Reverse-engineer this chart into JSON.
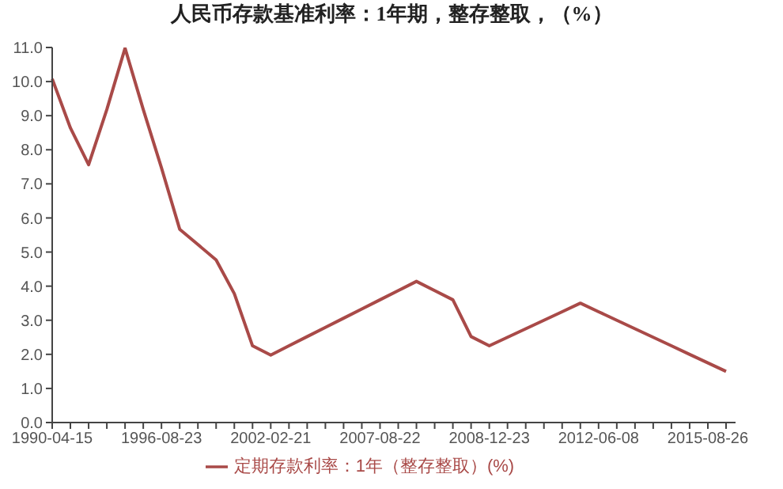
{
  "chart_data": {
    "type": "line",
    "title": "人民币存款基准利率：1年期，整存整取，（%）",
    "categories": [
      "1990-04-15",
      null,
      null,
      null,
      null,
      null,
      "1996-08-23",
      null,
      null,
      null,
      null,
      null,
      "2002-02-21",
      null,
      null,
      null,
      null,
      null,
      "2007-08-22",
      null,
      null,
      null,
      null,
      null,
      "2008-12-23",
      null,
      null,
      null,
      null,
      null,
      "2012-06-08",
      null,
      null,
      null,
      null,
      null,
      "2015-08-26",
      null
    ],
    "series": [
      {
        "name": "定期存款利率：1年（整存整取）(%)",
        "color": "#a94a48",
        "values": [
          10.08,
          8.64,
          7.56,
          9.18,
          10.98,
          9.18,
          7.47,
          5.67,
          5.22,
          4.77,
          3.78,
          2.25,
          1.98,
          2.25,
          2.52,
          2.79,
          3.06,
          3.33,
          3.6,
          3.87,
          4.14,
          3.87,
          3.6,
          2.52,
          2.25,
          2.5,
          2.75,
          3.0,
          3.25,
          3.5,
          3.25,
          3.0,
          2.75,
          2.5,
          2.25,
          2.0,
          1.75,
          1.5
        ]
      }
    ],
    "ylim": [
      0,
      11
    ],
    "yticks": [
      {
        "value": 0,
        "label": "0.0"
      },
      {
        "value": 1,
        "label": "1.0"
      },
      {
        "value": 2,
        "label": "2.0"
      },
      {
        "value": 3,
        "label": "3.0"
      },
      {
        "value": 4,
        "label": "4.0"
      },
      {
        "value": 5,
        "label": "5.0"
      },
      {
        "value": 6,
        "label": "6.0"
      },
      {
        "value": 7,
        "label": "7.0"
      },
      {
        "value": 8,
        "label": "8.0"
      },
      {
        "value": 9,
        "label": "9.0"
      },
      {
        "value": 10,
        "label": "10.0"
      },
      {
        "value": 11,
        "label": "11.0"
      }
    ],
    "grid": false,
    "legend": "bottom",
    "marker": "none",
    "line_style": "solid"
  }
}
